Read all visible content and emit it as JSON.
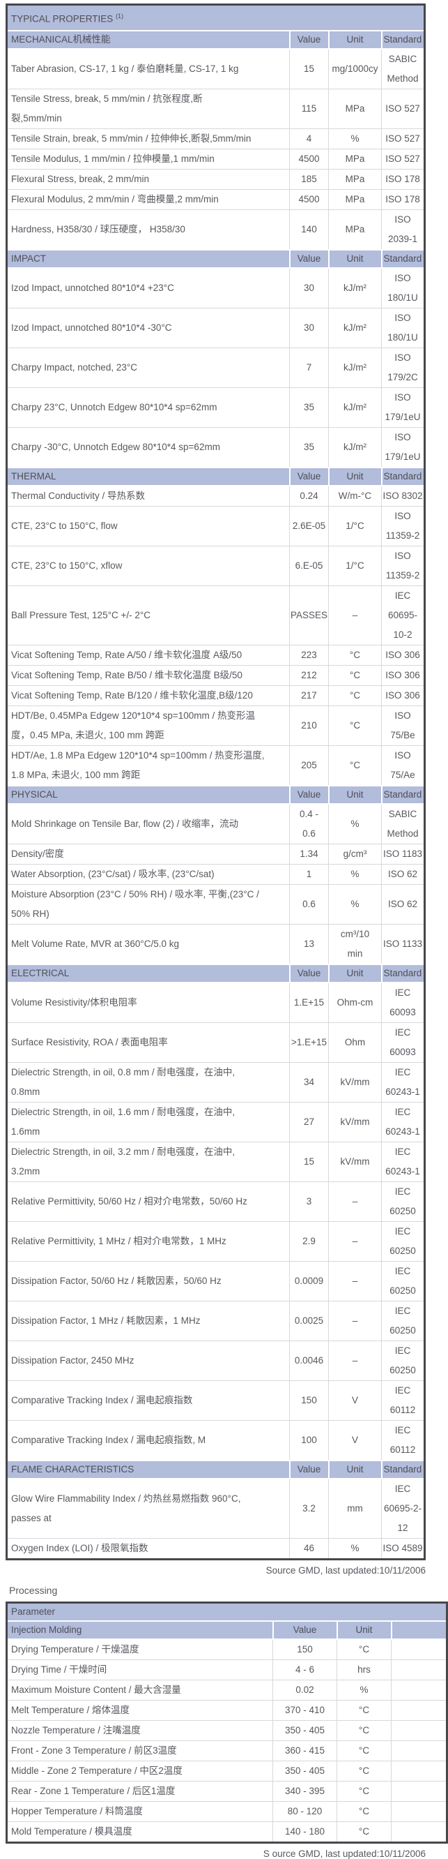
{
  "colors": {
    "header_band": "#b2bcdb",
    "body_text": "#57585e",
    "grid_line": "#d8d8da",
    "outer_border": "#47474c"
  },
  "table1": {
    "title": "TYPICAL PROPERTIES",
    "title_sup": "(1)",
    "col_headers": {
      "value": "Value",
      "unit": "Unit",
      "standard": "Standard"
    },
    "source_note": "Source GMD, last updated:10/11/2006",
    "sections": [
      {
        "label": "MECHANICAL机械性能",
        "rows": [
          {
            "property": "Taber Abrasion, CS-17, 1 kg / 泰伯磨耗量, CS-17, 1 kg",
            "value": "15",
            "unit": "mg/1000cy",
            "standard": "SABIC\nMethod"
          },
          {
            "property": "Tensile Stress, break, 5 mm/min / 抗张程度,断\n裂,5mm/min",
            "value": "115",
            "unit": "MPa",
            "standard": "ISO 527"
          },
          {
            "property": "Tensile Strain, break, 5 mm/min / 拉伸伸长,断裂,5mm/min",
            "value": "4",
            "unit": "%",
            "standard": "ISO 527"
          },
          {
            "property": "Tensile Modulus, 1 mm/min / 拉伸模量,1 mm/min",
            "value": "4500",
            "unit": "MPa",
            "standard": "ISO 527"
          },
          {
            "property": "Flexural Stress, break, 2 mm/min",
            "value": "185",
            "unit": "MPa",
            "standard": "ISO 178"
          },
          {
            "property": "Flexural Modulus, 2 mm/min / 弯曲模量,2 mm/min",
            "value": "4500",
            "unit": "MPa",
            "standard": "ISO 178"
          },
          {
            "property": "Hardness, H358/30 / 球压硬度， H358/30",
            "value": "140",
            "unit": "MPa",
            "standard": "ISO\n2039-1"
          }
        ]
      },
      {
        "label": "IMPACT",
        "rows": [
          {
            "property": "Izod Impact, unnotched 80*10*4 +23°C",
            "value": "30",
            "unit": "kJ/m²",
            "standard": "ISO\n180/1U"
          },
          {
            "property": "Izod Impact, unnotched 80*10*4 -30°C",
            "value": "30",
            "unit": "kJ/m²",
            "standard": "ISO\n180/1U"
          },
          {
            "property": "Charpy Impact, notched, 23°C",
            "value": "7",
            "unit": "kJ/m²",
            "standard": "ISO\n179/2C"
          },
          {
            "property": "Charpy 23°C, Unnotch Edgew 80*10*4 sp=62mm",
            "value": "35",
            "unit": "kJ/m²",
            "standard": "ISO\n179/1eU"
          },
          {
            "property": "Charpy -30°C, Unnotch Edgew 80*10*4 sp=62mm",
            "value": "35",
            "unit": "kJ/m²",
            "standard": "ISO\n179/1eU"
          }
        ]
      },
      {
        "label": "THERMAL",
        "rows": [
          {
            "property": "Thermal Conductivity / 导热系数",
            "value": "0.24",
            "unit": "W/m-°C",
            "standard": "ISO 8302"
          },
          {
            "property": "CTE, 23°C to 150°C, flow",
            "value": "2.6E-05",
            "unit": "1/°C",
            "standard": "ISO\n11359-2"
          },
          {
            "property": "CTE, 23°C to 150°C, xflow",
            "value": "6.E-05",
            "unit": "1/°C",
            "standard": "ISO\n11359-2"
          },
          {
            "property": "Ball Pressure Test, 125°C +/- 2°C",
            "value": "PASSES",
            "unit": "–",
            "standard": "IEC\n60695-\n10-2"
          },
          {
            "property": "Vicat Softening Temp, Rate A/50 / 维卡软化温度 A级/50",
            "value": "223",
            "unit": "°C",
            "standard": "ISO 306"
          },
          {
            "property": "Vicat Softening Temp, Rate B/50 / 维卡软化温度 B级/50",
            "value": "212",
            "unit": "°C",
            "standard": "ISO 306"
          },
          {
            "property": "Vicat Softening Temp, Rate B/120 / 维卡软化温度,B级/120",
            "value": "217",
            "unit": "°C",
            "standard": "ISO 306"
          },
          {
            "property": "HDT/Be, 0.45MPa Edgew 120*10*4 sp=100mm / 热变形温\n度，0.45 MPa, 未退火, 100 mm 跨距",
            "value": "210",
            "unit": "°C",
            "standard": "ISO\n75/Be"
          },
          {
            "property": "HDT/Ae, 1.8 MPa Edgew 120*10*4 sp=100mm / 热变形温度,\n1.8 MPa, 未退火, 100 mm 跨距",
            "value": "205",
            "unit": "°C",
            "standard": "ISO\n75/Ae"
          }
        ]
      },
      {
        "label": "PHYSICAL",
        "rows": [
          {
            "property": "Mold Shrinkage on Tensile Bar, flow (2) / 收缩率，流动",
            "value": "0.4 -\n0.6",
            "unit": "%",
            "standard": "SABIC\nMethod"
          },
          {
            "property": "Density/密度",
            "value": "1.34",
            "unit": "g/cm³",
            "standard": "ISO 1183"
          },
          {
            "property": "Water Absorption, (23°C/sat) / 吸水率, (23°C/sat)",
            "value": "1",
            "unit": "%",
            "standard": "ISO 62"
          },
          {
            "property": "Moisture Absorption (23°C / 50% RH) / 吸水率, 平衡,(23°C /\n50% RH)",
            "value": "0.6",
            "unit": "%",
            "standard": "ISO 62"
          },
          {
            "property": "Melt Volume Rate, MVR at 360°C/5.0 kg",
            "value": "13",
            "unit": "cm³/10\nmin",
            "standard": "ISO 1133"
          }
        ]
      },
      {
        "label": "ELECTRICAL",
        "rows": [
          {
            "property": "Volume Resistivity/体积电阻率",
            "value": "1.E+15",
            "unit": "Ohm-cm",
            "standard": "IEC\n60093"
          },
          {
            "property": "Surface Resistivity, ROA / 表面电阻率",
            "value": ">1.E+15",
            "unit": "Ohm",
            "standard": "IEC\n60093"
          },
          {
            "property": "Dielectric Strength, in oil, 0.8 mm / 耐电强度，在油中,\n0.8mm",
            "value": "34",
            "unit": "kV/mm",
            "standard": "IEC\n60243-1"
          },
          {
            "property": "Dielectric Strength, in oil, 1.6 mm / 耐电强度，在油中,\n1.6mm",
            "value": "27",
            "unit": "kV/mm",
            "standard": "IEC\n60243-1"
          },
          {
            "property": "Dielectric Strength, in oil, 3.2 mm / 耐电强度，在油中,\n3.2mm",
            "value": "15",
            "unit": "kV/mm",
            "standard": "IEC\n60243-1"
          },
          {
            "property": "Relative Permittivity, 50/60 Hz / 相对介电常数，50/60 Hz",
            "value": "3",
            "unit": "–",
            "standard": "IEC\n60250"
          },
          {
            "property": "Relative Permittivity, 1 MHz / 相对介电常数，1 MHz",
            "value": "2.9",
            "unit": "–",
            "standard": "IEC\n60250"
          },
          {
            "property": "Dissipation Factor, 50/60 Hz / 耗散因素，50/60 Hz",
            "value": "0.0009",
            "unit": "–",
            "standard": "IEC\n60250"
          },
          {
            "property": "Dissipation Factor, 1 MHz / 耗散因素，1 MHz",
            "value": "0.0025",
            "unit": "–",
            "standard": "IEC\n60250"
          },
          {
            "property": "Dissipation Factor, 2450 MHz",
            "value": "0.0046",
            "unit": "–",
            "standard": "IEC\n60250"
          },
          {
            "property": "Comparative Tracking Index / 漏电起痕指数",
            "value": "150",
            "unit": "V",
            "standard": "IEC 60112"
          },
          {
            "property": "Comparative Tracking Index / 漏电起痕指数, M",
            "value": "100",
            "unit": "V",
            "standard": "IEC 60112"
          }
        ]
      },
      {
        "label": "FLAME CHARACTERISTICS",
        "rows": [
          {
            "property": "Glow Wire Flammability Index / 灼热丝易燃指数 960°C,\npasses at",
            "value": "3.2",
            "unit": "mm",
            "standard": "IEC\n60695-2-\n12"
          },
          {
            "property": "Oxygen Index (LOI) / 极限氧指数",
            "value": "46",
            "unit": "%",
            "standard": "ISO 4589"
          }
        ]
      }
    ]
  },
  "processing": {
    "heading": "Processing",
    "source_note": "S ource GMD, last updated:10/11/2006"
  },
  "table2": {
    "title": "Parameter",
    "subtitle": "Injection Molding",
    "col_headers": {
      "value": "Value",
      "unit": "Unit"
    },
    "rows": [
      {
        "property": "Drying Temperature / 干燥温度",
        "value": "150",
        "unit": "°C"
      },
      {
        "property": "Drying Time / 干燥时间",
        "value": "4 - 6",
        "unit": "hrs"
      },
      {
        "property": "Maximum Moisture Content / 最大含湿量",
        "value": "0.02",
        "unit": "%"
      },
      {
        "property": "Melt Temperature / 熔体温度",
        "value": "370 - 410",
        "unit": "°C"
      },
      {
        "property": "Nozzle Temperature / 注嘴温度",
        "value": "350 - 405",
        "unit": "°C"
      },
      {
        "property": "Front - Zone 3 Temperature / 前区3温度",
        "value": "360 - 415",
        "unit": "°C"
      },
      {
        "property": "Middle - Zone 2 Temperature / 中区2温度",
        "value": "350 - 405",
        "unit": "°C"
      },
      {
        "property": "Rear - Zone 1 Temperature / 后区1温度",
        "value": "340 - 395",
        "unit": "°C"
      },
      {
        "property": "Hopper Temperature / 料筒温度",
        "value": "80 - 120",
        "unit": "°C"
      },
      {
        "property": "Mold Temperature / 模具温度",
        "value": "140 - 180",
        "unit": "°C"
      }
    ]
  }
}
